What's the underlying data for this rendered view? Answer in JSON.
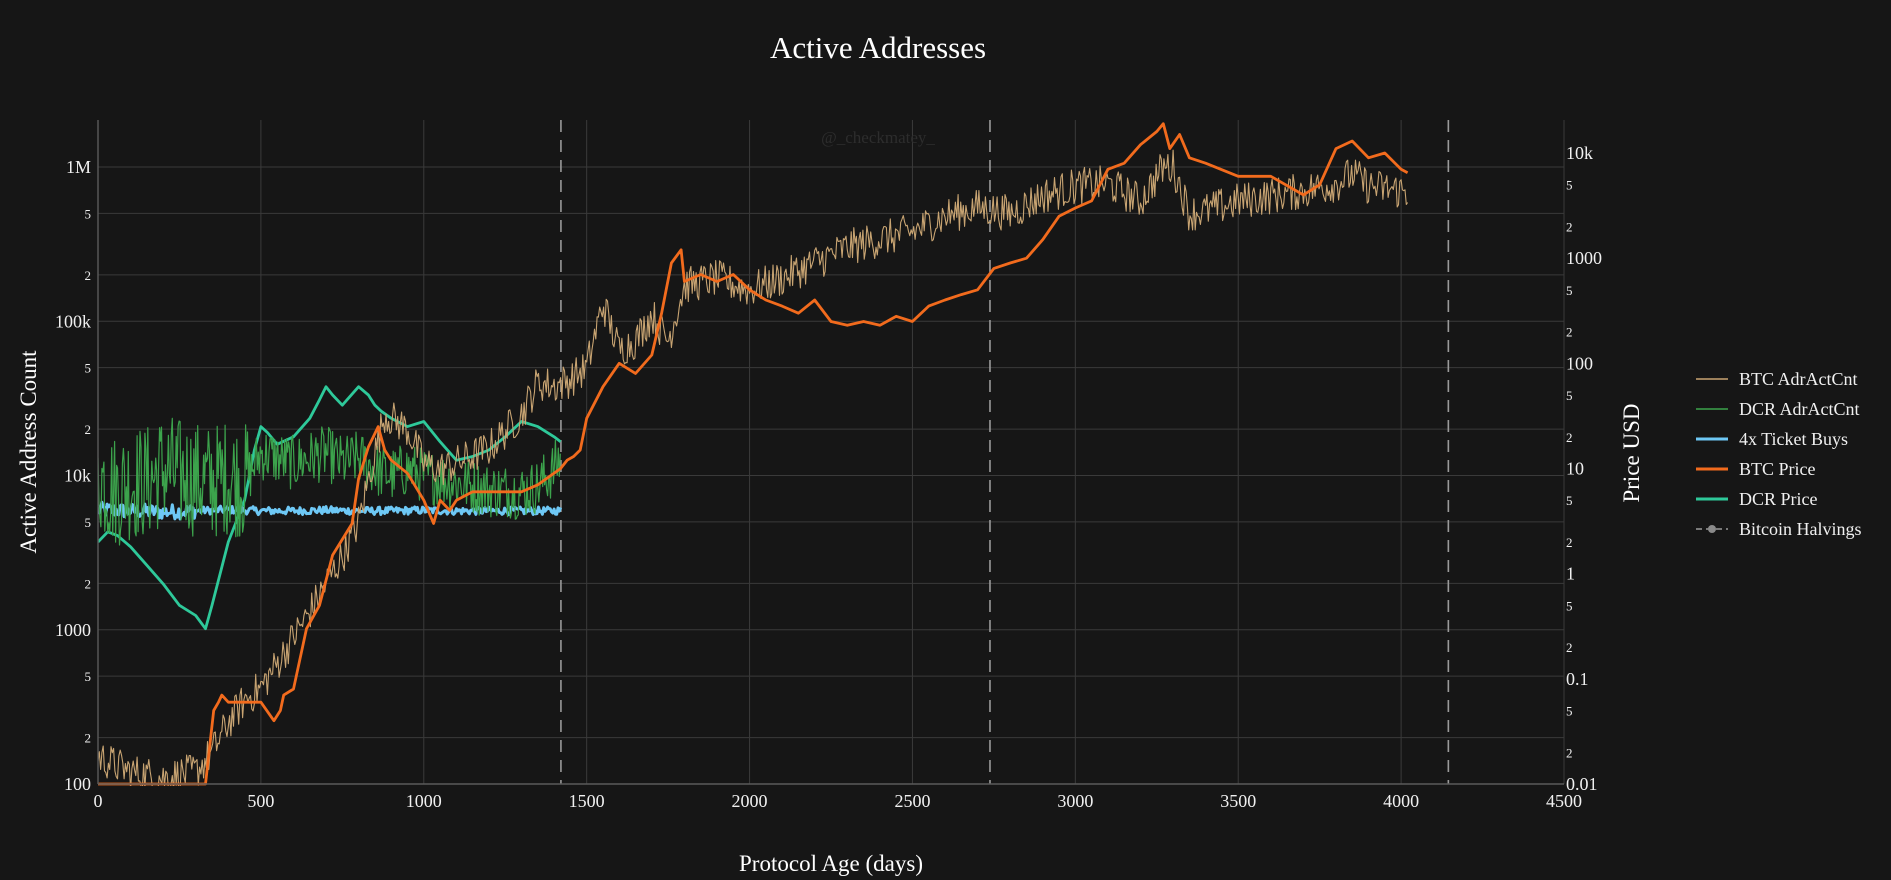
{
  "chart_data": {
    "type": "line",
    "title": "Active Addresses",
    "watermark": "@_checkmatey_",
    "xlabel": "Protocol Age (days)",
    "ylabel": "Active Address Count",
    "y2label": "Price USD",
    "xlim": [
      0,
      4500
    ],
    "ylim": [
      100,
      2000000
    ],
    "ylog": true,
    "y2lim": [
      0.01,
      30000
    ],
    "y2log": true,
    "grid": true,
    "legend_position": "right",
    "x_ticks": [
      "0",
      "500",
      "1000",
      "1500",
      "2000",
      "2500",
      "3000",
      "3500",
      "4000",
      "4500"
    ],
    "y_major_ticks": [
      "100",
      "1000",
      "10k",
      "100k",
      "1M"
    ],
    "y_minor_ticks": [
      "2",
      "5"
    ],
    "y2_major_ticks": [
      "0.01",
      "0.1",
      "1",
      "10",
      "100",
      "1000",
      "10k"
    ],
    "y2_minor_ticks": [
      "2",
      "5"
    ],
    "halvings": [
      1421,
      2738,
      4145
    ],
    "legend": [
      "BTC AdrActCnt",
      "DCR AdrActCnt",
      "4x Ticket Buys",
      "BTC Price",
      "DCR Price",
      "Bitcoin Halvings"
    ],
    "series": [
      {
        "name": "BTC AdrActCnt",
        "axis": "y",
        "color": "#c8a472",
        "noisy": true,
        "x": [
          0,
          100,
          200,
          300,
          350,
          400,
          450,
          500,
          550,
          600,
          650,
          700,
          750,
          800,
          850,
          880,
          950,
          1000,
          1050,
          1100,
          1200,
          1300,
          1350,
          1400,
          1450,
          1500,
          1550,
          1600,
          1650,
          1700,
          1750,
          1800,
          1900,
          2000,
          2100,
          2200,
          2300,
          2400,
          2500,
          2600,
          2700,
          2800,
          2900,
          3000,
          3100,
          3200,
          3270,
          3300,
          3350,
          3400,
          3500,
          3600,
          3700,
          3800,
          3850,
          3900,
          4000,
          4020
        ],
        "y": [
          150,
          120,
          110,
          120,
          160,
          250,
          350,
          420,
          600,
          900,
          1300,
          2000,
          3000,
          5000,
          14000,
          25000,
          20000,
          12000,
          11000,
          12000,
          15000,
          25000,
          40000,
          38000,
          42000,
          50000,
          130000,
          65000,
          75000,
          110000,
          75000,
          170000,
          190000,
          160000,
          190000,
          240000,
          300000,
          340000,
          380000,
          480000,
          550000,
          500000,
          650000,
          750000,
          780000,
          600000,
          1000000,
          1000000,
          500000,
          520000,
          600000,
          650000,
          700000,
          780000,
          900000,
          750000,
          700000,
          680000
        ]
      },
      {
        "name": "DCR AdrActCnt",
        "axis": "y",
        "color": "#3ca34c",
        "noisy": true,
        "x": [
          0,
          50,
          100,
          150,
          200,
          250,
          300,
          350,
          400,
          450,
          500,
          550,
          600,
          650,
          700,
          750,
          800,
          850,
          900,
          950,
          1000,
          1050,
          1100,
          1150,
          1200,
          1250,
          1300,
          1350,
          1400,
          1420
        ],
        "y": [
          10000,
          8000,
          9000,
          9000,
          11000,
          10000,
          9500,
          9000,
          10000,
          9000,
          14000,
          13000,
          12000,
          13000,
          14000,
          12000,
          13000,
          11000,
          10000,
          11000,
          10000,
          9500,
          9000,
          8500,
          8000,
          8000,
          7800,
          8500,
          11000,
          13000
        ]
      },
      {
        "name": "4x Ticket Buys",
        "axis": "y",
        "color": "#6ec8f5",
        "noisy": true,
        "x": [
          0,
          100,
          200,
          300,
          400,
          500,
          600,
          700,
          800,
          900,
          1000,
          1100,
          1200,
          1300,
          1400,
          1420
        ],
        "y": [
          6000,
          5900,
          5800,
          5900,
          6000,
          5900,
          5900,
          5950,
          5900,
          5900,
          5950,
          5900,
          5900,
          5900,
          5900,
          5950
        ]
      },
      {
        "name": "BTC Price",
        "axis": "y2",
        "color": "#f26b1d",
        "noisy": false,
        "x": [
          0,
          330,
          355,
          370,
          380,
          400,
          460,
          470,
          480,
          500,
          540,
          560,
          570,
          600,
          640,
          680,
          720,
          780,
          800,
          830,
          860,
          880,
          900,
          950,
          1000,
          1030,
          1050,
          1080,
          1100,
          1150,
          1200,
          1250,
          1300,
          1350,
          1420,
          1440,
          1460,
          1480,
          1500,
          1550,
          1600,
          1650,
          1700,
          1730,
          1760,
          1790,
          1800,
          1850,
          1900,
          1950,
          2000,
          2050,
          2100,
          2150,
          2200,
          2250,
          2300,
          2350,
          2400,
          2450,
          2500,
          2550,
          2600,
          2650,
          2700,
          2750,
          2800,
          2850,
          2900,
          2950,
          3000,
          3050,
          3100,
          3150,
          3200,
          3250,
          3270,
          3290,
          3320,
          3350,
          3400,
          3500,
          3600,
          3700,
          3750,
          3800,
          3850,
          3900,
          3950,
          4000,
          4020
        ],
        "y": [
          0.01,
          0.01,
          0.05,
          0.06,
          0.07,
          0.06,
          0.06,
          0.06,
          0.06,
          0.06,
          0.04,
          0.05,
          0.07,
          0.08,
          0.3,
          0.5,
          1.5,
          3,
          8,
          16,
          25,
          15,
          12,
          9,
          5,
          3,
          5,
          4,
          5,
          6,
          6,
          6,
          6,
          7,
          10,
          12,
          13,
          15,
          30,
          60,
          100,
          80,
          120,
          300,
          900,
          1200,
          600,
          700,
          600,
          700,
          500,
          400,
          350,
          300,
          400,
          250,
          230,
          250,
          230,
          280,
          250,
          350,
          400,
          450,
          500,
          800,
          900,
          1000,
          1500,
          2500,
          3000,
          3500,
          7000,
          8000,
          12000,
          16000,
          19000,
          11000,
          15000,
          9000,
          8000,
          6000,
          6000,
          4000,
          5000,
          11000,
          13000,
          9000,
          10000,
          7000,
          6500
        ]
      },
      {
        "name": "DCR Price",
        "axis": "y2",
        "color": "#2ec99a",
        "noisy": false,
        "x": [
          0,
          30,
          60,
          100,
          150,
          200,
          250,
          300,
          330,
          350,
          400,
          450,
          480,
          500,
          520,
          550,
          600,
          650,
          680,
          700,
          720,
          750,
          800,
          830,
          850,
          870,
          900,
          950,
          1000,
          1050,
          1100,
          1150,
          1200,
          1250,
          1300,
          1350,
          1400,
          1420
        ],
        "y": [
          2,
          2.5,
          2.3,
          1.8,
          1.2,
          0.8,
          0.5,
          0.4,
          0.3,
          0.5,
          2,
          5,
          15,
          25,
          22,
          17,
          20,
          30,
          45,
          60,
          50,
          40,
          60,
          50,
          40,
          35,
          30,
          25,
          28,
          18,
          12,
          13,
          15,
          20,
          28,
          25,
          20,
          18
        ]
      }
    ]
  }
}
